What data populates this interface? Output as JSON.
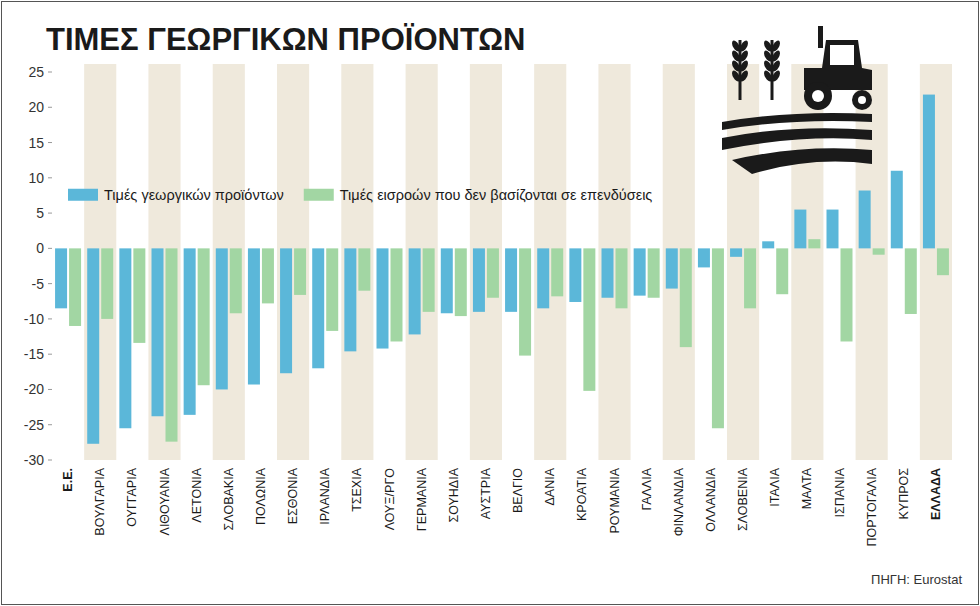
{
  "chart_data": {
    "type": "bar",
    "title": "ΤΙΜΕΣ ΓΕΩΡΓΙΚΩΝ ΠΡΟΪΟΝΤΩΝ",
    "source": "ΠΗΓΗ: Eurostat",
    "categories": [
      "Ε.Ε.",
      "ΒΟΥΛΓΑΡΙΑ",
      "ΟΥΓΓΑΡΙΑ",
      "ΛΙΘΟΥΑΝΙΑ",
      "ΛΕΤΟΝΙΑ",
      "ΣΛΟΒΑΚΙΑ",
      "ΠΟΛΩΝΙΑ",
      "ΕΣΘΟΝΙΑ",
      "ΙΡΛΑΝΔΙΑ",
      "ΤΣΕΧΙΑ",
      "ΛΟΥΞ/ΡΓΟ",
      "ΓΕΡΜΑΝΙΑ",
      "ΣΟΥΗΔΙΑ",
      "ΑΥΣΤΡΙΑ",
      "ΒΕΛΓΙΟ",
      "ΔΑΝΙΑ",
      "ΚΡΟΑΤΙΑ",
      "ΡΟΥΜΑΝΙΑ",
      "ΓΑΛΛΙΑ",
      "ΦΙΝΛΑΝΔΙΑ",
      "ΟΛΛΑΝΔΙΑ",
      "ΣΛΟΒΕΝΙΑ",
      "ΙΤΑΛΙΑ",
      "ΜΑΛΤΑ",
      "ΙΣΠΑΝΙΑ",
      "ΠΟΡΤΟΓΑΛΙΑ",
      "ΚΥΠΡΟΣ",
      "ΕΛΛΑΔΑ"
    ],
    "series": [
      {
        "name": "Τιμές γεωργικών προϊόντων",
        "color": "#5bb7d9",
        "values": [
          -8.5,
          -27.7,
          -25.5,
          -23.8,
          -23.6,
          -20,
          -19.3,
          -17.7,
          -17,
          -14.6,
          -14.2,
          -12.2,
          -9.2,
          -9,
          -9,
          -8.5,
          -7.6,
          -7,
          -6.7,
          -5.7,
          -2.7,
          -1.2,
          1,
          5.5,
          5.5,
          8.2,
          11,
          21.8
        ]
      },
      {
        "name": "Τιμές εισροών που δεν βασίζονται σε επενδύσεις",
        "color": "#a2d6a3",
        "values": [
          -11,
          -10,
          -13.4,
          -27.4,
          -19.4,
          -9.2,
          -7.8,
          -6.6,
          -11.7,
          -6,
          -13.2,
          -9,
          -9.6,
          -7,
          -15.2,
          -6.8,
          -20.2,
          -8.5,
          -7,
          -14,
          -25.5,
          -8.5,
          -6.5,
          1.3,
          -13.2,
          -0.9,
          -9.3,
          -3.8
        ]
      }
    ],
    "ylim": [
      -30,
      25
    ],
    "yticks": [
      -30,
      -25,
      -20,
      -15,
      -10,
      -5,
      0,
      5,
      10,
      15,
      20,
      25
    ],
    "grid": false,
    "legend": "upper left"
  }
}
